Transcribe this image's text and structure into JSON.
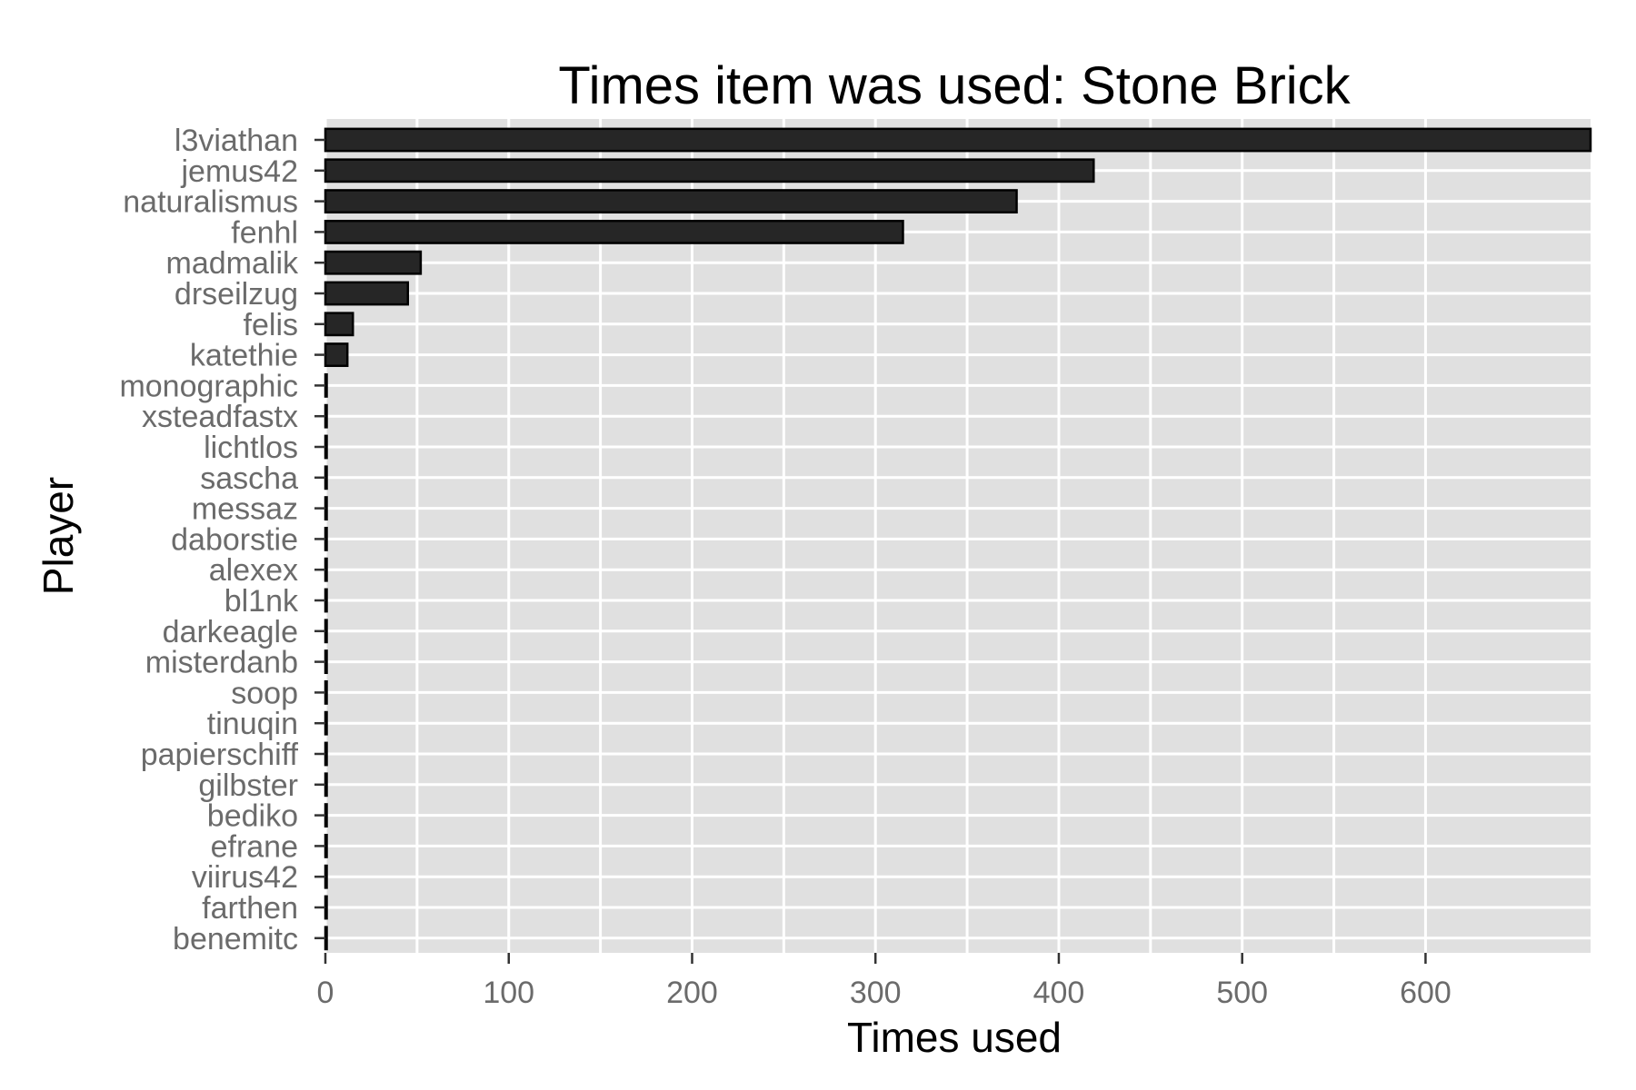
{
  "chart_data": {
    "type": "bar",
    "orientation": "horizontal",
    "title": "Times item was used: Stone Brick",
    "xlabel": "Times used",
    "ylabel": "Player",
    "categories": [
      "l3viathan",
      "jemus42",
      "naturalismus",
      "fenhl",
      "madmalik",
      "drseilzug",
      "felis",
      "katethie",
      "monographic",
      "xsteadfastx",
      "lichtlos",
      "sascha",
      "messaz",
      "daborstie",
      "alexex",
      "bl1nk",
      "darkeagle",
      "misterdanb",
      "soop",
      "tinuqin",
      "papierschiff",
      "gilbster",
      "bediko",
      "efrane",
      "viirus42",
      "farthen",
      "benemitc"
    ],
    "values": [
      690,
      419,
      377,
      315,
      52,
      45,
      15,
      12,
      0,
      0,
      0,
      0,
      0,
      0,
      0,
      0,
      0,
      0,
      0,
      0,
      0,
      0,
      0,
      0,
      0,
      0,
      0
    ],
    "xlim": [
      0,
      690
    ],
    "xticks": [
      0,
      100,
      200,
      300,
      400,
      500,
      600
    ],
    "bar_color": "#262626",
    "bar_border": "#000000",
    "panel_color": "#e0e0e0",
    "grid": true
  }
}
